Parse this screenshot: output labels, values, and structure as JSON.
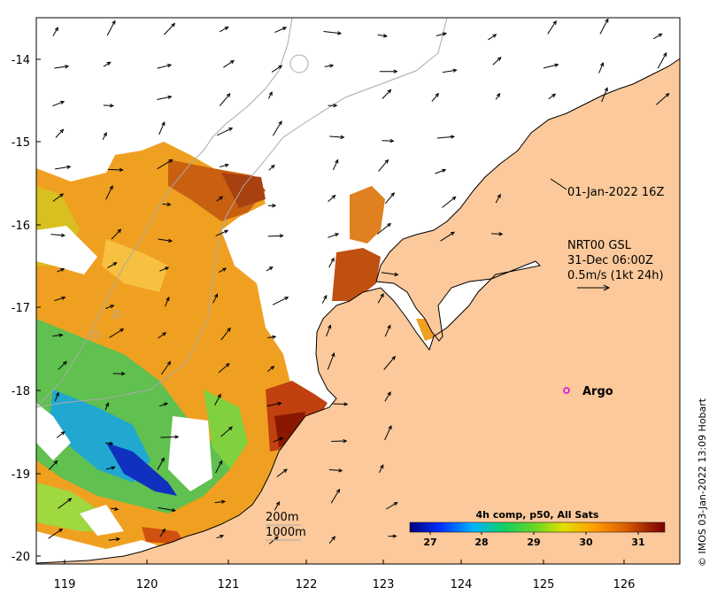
{
  "map": {
    "lon_ticks": [
      "119",
      "120",
      "121",
      "122",
      "123",
      "124",
      "125",
      "126"
    ],
    "lat_ticks": [
      "-14",
      "-15",
      "-16",
      "-17",
      "-18",
      "-19",
      "-20"
    ],
    "lon_range": [
      118.6,
      126.7
    ],
    "lat_range": [
      -20.1,
      -13.6
    ]
  },
  "annotations": {
    "time_label": "01-Jan-2022 16Z",
    "product_line1": "NRT00 GSL",
    "product_line2": "31-Dec 06:00Z",
    "product_line3": "0.5m/s (1kt 24h)",
    "argo_label": "Argo",
    "depth_200": "200m",
    "depth_1000": "1000m"
  },
  "colorbar": {
    "title": "4h comp, p50, All Sats",
    "labels": [
      "27",
      "28",
      "29",
      "30",
      "31"
    ],
    "range": [
      26.6,
      31.5
    ],
    "colors": [
      "#00007f",
      "#0030ff",
      "#00b4ff",
      "#10d060",
      "#70d820",
      "#e0e000",
      "#ffa000",
      "#e06000",
      "#a02800",
      "#7f0000"
    ]
  },
  "credit": "© IMOS 03-Jan-2022 13:09 Hobart",
  "colors": {
    "land": "#fbc99b",
    "coast": "#000000",
    "isobath": "#aaaaaa",
    "argo": "#e000e0"
  }
}
